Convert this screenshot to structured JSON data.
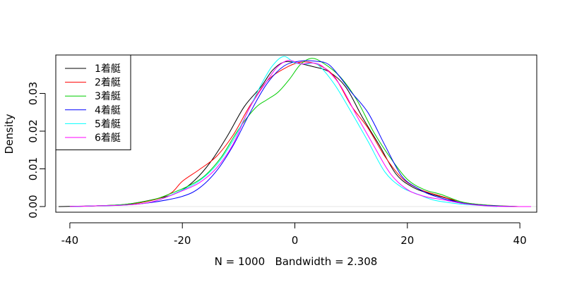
{
  "chart_data": {
    "type": "line",
    "title": "",
    "xlabel": "N = 1000   Bandwidth = 2.308",
    "ylabel": "Density",
    "xlim": [
      -42.5,
      43.0
    ],
    "ylim": [
      -0.0015,
      0.0402
    ],
    "x_ticks": [
      -40,
      -20,
      0,
      20,
      40
    ],
    "y_ticks": [
      0.0,
      0.01,
      0.02,
      0.03
    ],
    "x_tick_labels": [
      "-40",
      "-20",
      "0",
      "20",
      "40"
    ],
    "y_tick_labels": [
      "0.00",
      "0.01",
      "0.02",
      "0.03"
    ],
    "legend_position": "top-left",
    "grid": false,
    "baseline": 0,
    "series": [
      {
        "name": "1着艇",
        "color": "#000000",
        "x": [
          -42,
          -35,
          -30,
          -25,
          -21,
          -18,
          -15,
          -12,
          -9,
          -6,
          -4,
          -2,
          0,
          3,
          6,
          9,
          12,
          15,
          18,
          21,
          24,
          27,
          30,
          35,
          40
        ],
        "y": [
          0.0,
          0.0002,
          0.0006,
          0.0019,
          0.0036,
          0.0067,
          0.0118,
          0.0187,
          0.0265,
          0.0318,
          0.0361,
          0.0383,
          0.0382,
          0.0372,
          0.0358,
          0.0318,
          0.0237,
          0.0163,
          0.0086,
          0.0051,
          0.0034,
          0.0022,
          0.0008,
          0.0002,
          0.0
        ]
      },
      {
        "name": "2着艇",
        "color": "#ff0000",
        "x": [
          -40,
          -35,
          -30,
          -25,
          -22,
          -20,
          -17,
          -14,
          -11,
          -8,
          -5,
          -2,
          1,
          4,
          7,
          10,
          13,
          16,
          19,
          22,
          25,
          30,
          35,
          40
        ],
        "y": [
          0.0,
          0.0002,
          0.0005,
          0.0018,
          0.0036,
          0.0067,
          0.0098,
          0.0132,
          0.0189,
          0.0267,
          0.0332,
          0.0365,
          0.0383,
          0.0377,
          0.0345,
          0.0268,
          0.0208,
          0.0133,
          0.0076,
          0.0047,
          0.0032,
          0.0011,
          0.0003,
          0.0
        ]
      },
      {
        "name": "3着艇",
        "color": "#00cd00",
        "x": [
          -40,
          -35,
          -30,
          -25,
          -22,
          -19,
          -16,
          -13,
          -10,
          -7,
          -5,
          -3,
          -1,
          1,
          3,
          5,
          8,
          11,
          14,
          17,
          20,
          23,
          26,
          30,
          35,
          40
        ],
        "y": [
          0.0,
          0.0002,
          0.0006,
          0.0019,
          0.0035,
          0.0054,
          0.0082,
          0.0133,
          0.0205,
          0.0262,
          0.0283,
          0.0303,
          0.0337,
          0.0377,
          0.0393,
          0.0381,
          0.0345,
          0.0283,
          0.0198,
          0.0129,
          0.0072,
          0.0045,
          0.0032,
          0.0011,
          0.0003,
          0.0
        ]
      },
      {
        "name": "4着艇",
        "color": "#0000ff",
        "x": [
          -40,
          -35,
          -30,
          -25,
          -20,
          -17,
          -14,
          -11,
          -8,
          -5,
          -2,
          1,
          4,
          6,
          8,
          10,
          13,
          16,
          19,
          22,
          25,
          30,
          35,
          40
        ],
        "y": [
          0.0,
          0.0002,
          0.0004,
          0.0012,
          0.0027,
          0.0049,
          0.0093,
          0.0161,
          0.0248,
          0.0325,
          0.0372,
          0.0386,
          0.0385,
          0.0377,
          0.0344,
          0.0304,
          0.0249,
          0.0163,
          0.0081,
          0.0047,
          0.0027,
          0.0009,
          0.0002,
          0.0
        ]
      },
      {
        "name": "5着艇",
        "color": "#00ffff",
        "x": [
          -40,
          -35,
          -30,
          -25,
          -20,
          -17,
          -14,
          -11,
          -8,
          -6,
          -4,
          -2,
          0,
          2,
          4,
          7,
          10,
          13,
          16,
          19,
          22,
          25,
          30,
          36
        ],
        "y": [
          0.0,
          0.0002,
          0.0004,
          0.0014,
          0.0044,
          0.0068,
          0.0109,
          0.0175,
          0.0263,
          0.0323,
          0.0373,
          0.0398,
          0.0381,
          0.0378,
          0.0377,
          0.0325,
          0.0251,
          0.0173,
          0.0092,
          0.0051,
          0.0032,
          0.0016,
          0.0006,
          0.0
        ]
      },
      {
        "name": "6着艇",
        "color": "#ff00ff",
        "x": [
          -40,
          -35,
          -30,
          -25,
          -20,
          -17,
          -14,
          -11,
          -8,
          -5,
          -3,
          -1,
          1,
          3,
          5,
          8,
          11,
          14,
          17,
          20,
          23,
          26,
          30,
          35,
          42
        ],
        "y": [
          0.0,
          0.0002,
          0.0004,
          0.0014,
          0.0042,
          0.0063,
          0.0101,
          0.0165,
          0.0263,
          0.0332,
          0.0372,
          0.0388,
          0.0378,
          0.0381,
          0.0371,
          0.0323,
          0.0241,
          0.0162,
          0.0087,
          0.0045,
          0.0027,
          0.0019,
          0.0008,
          0.0001,
          0.0
        ]
      }
    ]
  }
}
